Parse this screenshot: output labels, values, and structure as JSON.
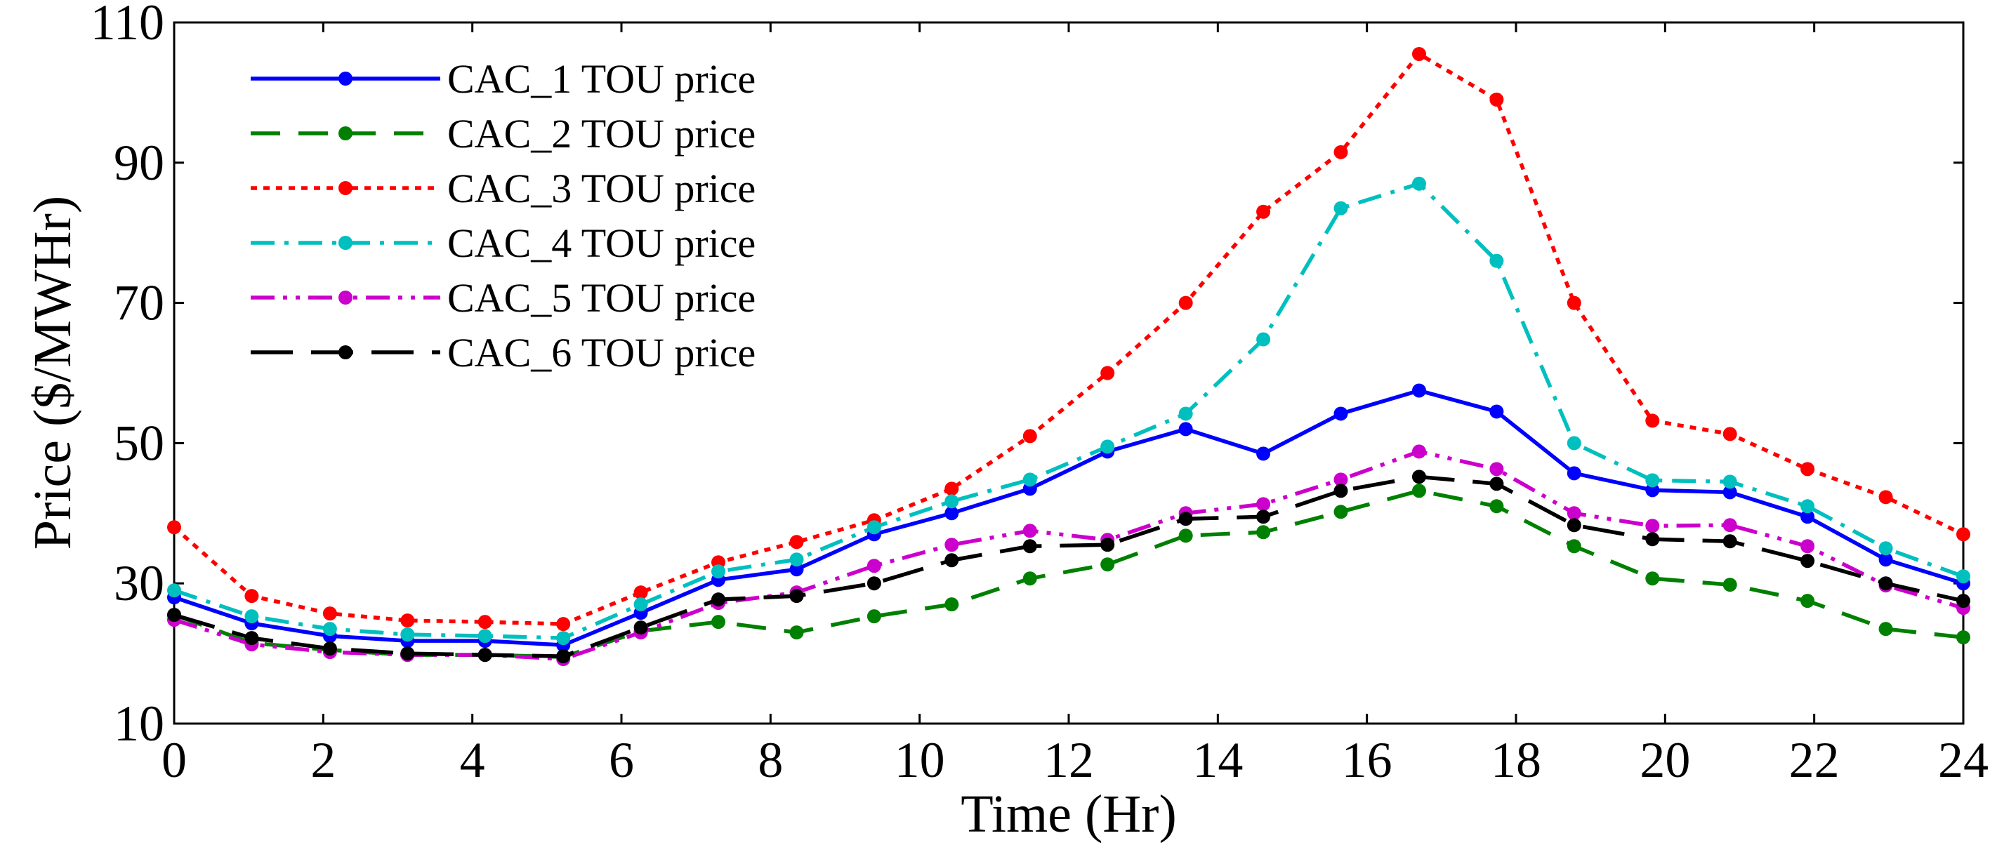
{
  "chart_data": {
    "type": "line",
    "title": "",
    "xlabel": "Time (Hr)",
    "ylabel": "Price ($/MWHr)",
    "xlim": [
      0,
      24
    ],
    "ylim": [
      10,
      110
    ],
    "x_ticks": [
      "0",
      "2",
      "4",
      "6",
      "8",
      "10",
      "12",
      "14",
      "16",
      "18",
      "20",
      "22",
      "24"
    ],
    "y_ticks": [
      "10",
      "30",
      "50",
      "70",
      "90",
      "110"
    ],
    "grid": false,
    "legend_position": "top-left",
    "x": [
      0,
      1.04,
      2.09,
      3.13,
      4.17,
      5.22,
      6.26,
      7.3,
      8.35,
      9.39,
      10.43,
      11.48,
      12.52,
      13.57,
      14.61,
      15.65,
      16.7,
      17.74,
      18.78,
      19.83,
      20.87,
      21.91,
      22.96,
      24
    ],
    "series": [
      {
        "name": "CAC_1 TOU price",
        "color": "#0000ff",
        "dash": "solid",
        "values": [
          28,
          24.3,
          22.5,
          21.8,
          21.8,
          21.2,
          25.8,
          30.5,
          32,
          37,
          40,
          43.5,
          48.8,
          52,
          48.5,
          54.2,
          57.5,
          54.5,
          45.7,
          43.3,
          43,
          39.5,
          33.4,
          30
        ]
      },
      {
        "name": "CAC_2 TOU price",
        "color": "#008000",
        "dash": "dash",
        "values": [
          25.5,
          21.5,
          20.5,
          19.8,
          19.8,
          19.5,
          23.2,
          24.5,
          23,
          25.3,
          27,
          30.7,
          32.7,
          36.8,
          37.3,
          40.2,
          43.2,
          41,
          35.3,
          30.7,
          29.8,
          27.5,
          23.5,
          22.3
        ]
      },
      {
        "name": "CAC_3 TOU price",
        "color": "#ff0000",
        "dash": "dot",
        "values": [
          38,
          28.2,
          25.7,
          24.7,
          24.5,
          24.2,
          28.7,
          33,
          35.9,
          39,
          43.5,
          51,
          60,
          70,
          83,
          91.5,
          105.5,
          99,
          70,
          53.2,
          51.3,
          46.3,
          42.3,
          37
        ]
      },
      {
        "name": "CAC_4 TOU price",
        "color": "#00bfbf",
        "dash": "dashdot",
        "values": [
          29,
          25.3,
          23.5,
          22.7,
          22.5,
          22.2,
          27,
          31.7,
          33.4,
          38,
          41.7,
          44.8,
          49.5,
          54.2,
          64.8,
          83.5,
          87,
          76,
          50,
          44.7,
          44.5,
          41,
          35,
          31
        ]
      },
      {
        "name": "CAC_5 TOU price",
        "color": "#cc00cc",
        "dash": "dashdotdot",
        "values": [
          24.8,
          21.3,
          20.2,
          19.8,
          19.8,
          19.2,
          23,
          27.2,
          28.7,
          32.5,
          35.5,
          37.5,
          36.2,
          40,
          41.3,
          44.8,
          48.8,
          46.3,
          40,
          38.2,
          38.3,
          35.3,
          29.7,
          26.5
        ]
      },
      {
        "name": "CAC_6 TOU price",
        "color": "#000000",
        "dash": "longdash",
        "values": [
          25.5,
          22.2,
          20.7,
          20,
          19.8,
          19.6,
          23.7,
          27.7,
          28.2,
          30,
          33.3,
          35.3,
          35.5,
          39.2,
          39.5,
          43.2,
          45.2,
          44.2,
          38.3,
          36.3,
          36,
          33.2,
          30,
          27.5
        ]
      }
    ]
  }
}
